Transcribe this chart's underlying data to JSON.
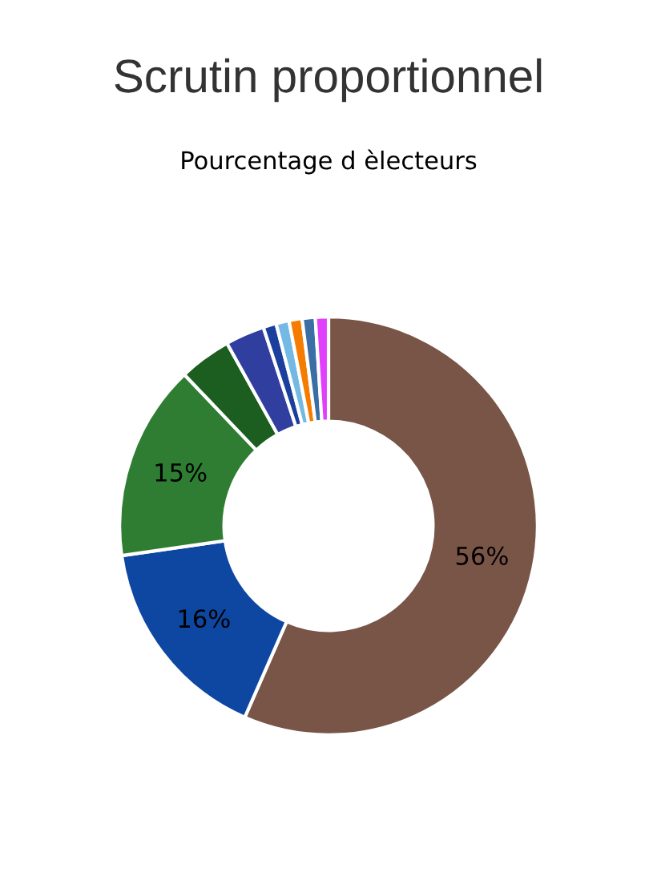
{
  "chart_data": {
    "type": "donut",
    "title": "Scrutin proportionnel",
    "subtitle": "Pourcentage d èlecteurs",
    "categories": [
      null,
      null,
      null,
      null,
      null,
      null,
      null,
      null,
      null,
      null
    ],
    "values": [
      56,
      16,
      15,
      4,
      3,
      1,
      1,
      1,
      1,
      1
    ],
    "colors": [
      "#795548",
      "#0d47a1",
      "#2e7d32",
      "#1b5e20",
      "#303f9f",
      "#1a3f9c",
      "#74b9e4",
      "#f57c00",
      "#3a6ea5",
      "#e040fb"
    ],
    "value_labels": [
      "56%",
      "16%",
      "15%",
      null,
      null,
      null,
      null,
      null,
      null,
      null
    ]
  }
}
